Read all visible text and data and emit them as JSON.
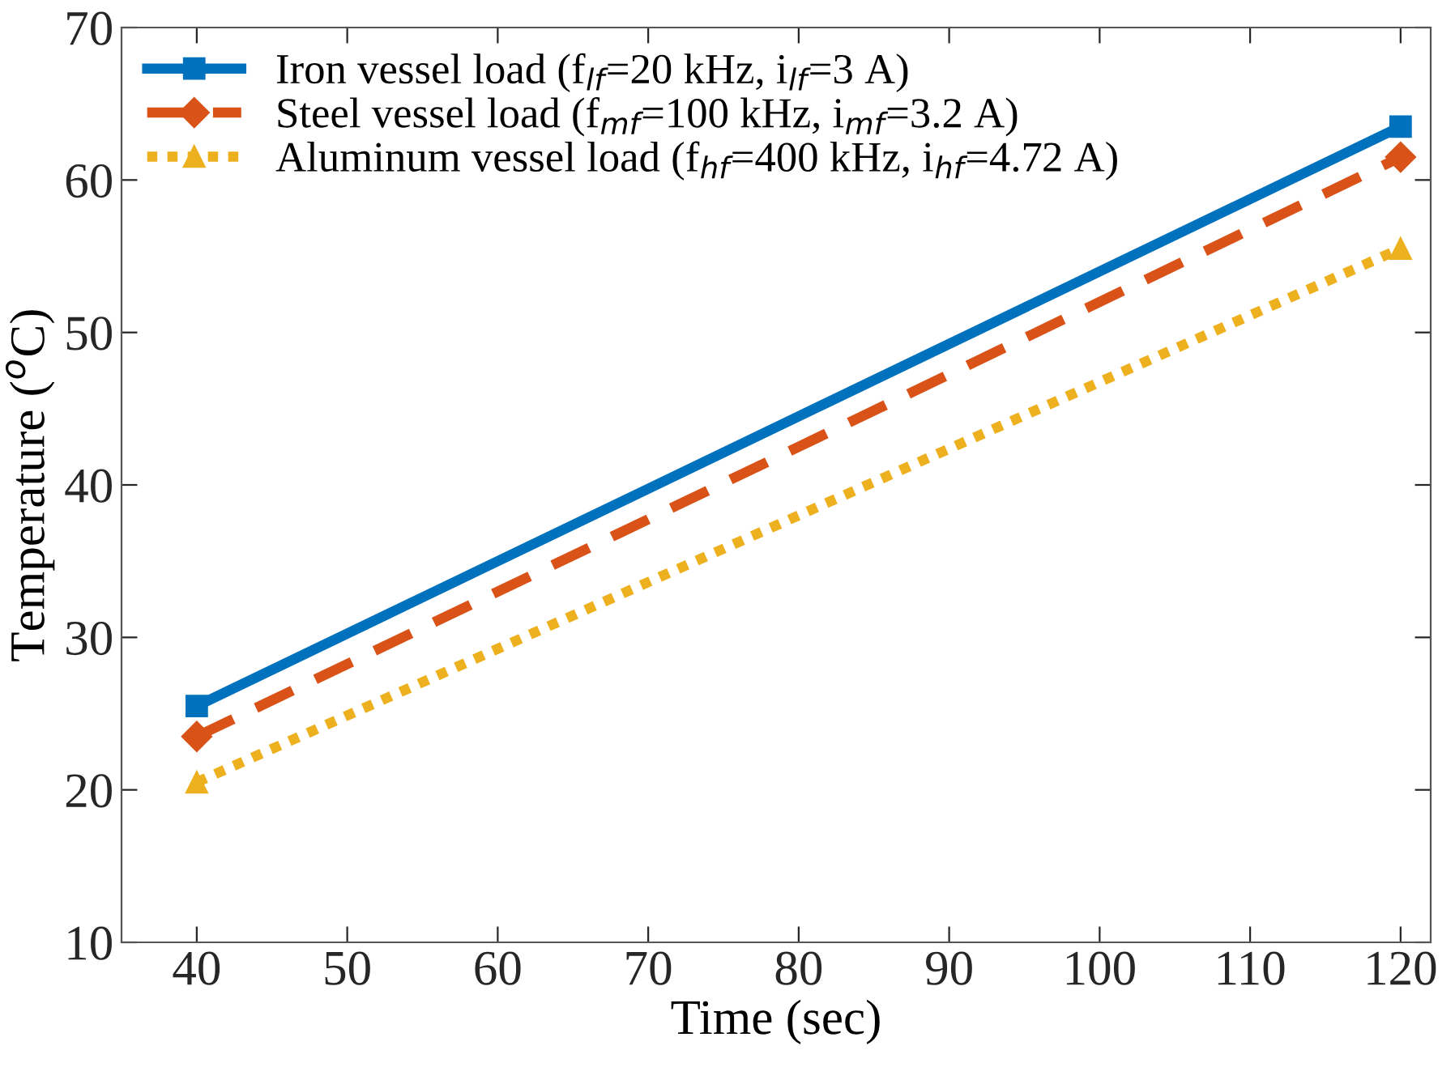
{
  "chart_data": {
    "type": "line",
    "xlabel": "Time (sec)",
    "ylabel": "Temperature ($^{o}$C)",
    "x": [
      40,
      120
    ],
    "series": [
      {
        "name": "Iron vessel load (f$_{lf}$=20 kHz, i$_{lf}$=3 A)",
        "color": "#0072bd",
        "values": [
          25.5,
          63.5
        ],
        "marker": "square",
        "line_style": "solid"
      },
      {
        "name": "Steel vessel load (f$_{mf}$=100 kHz, i$_{mf}$=3.2 A)",
        "color": "#d95319",
        "values": [
          23.5,
          61.5
        ],
        "marker": "diamond",
        "line_style": "dashed"
      },
      {
        "name": "Aluminum vessel load (f$_{hf}$=400 kHz, i$_{hf}$=4.72 A)",
        "color": "#edb120",
        "values": [
          20.5,
          55.5
        ],
        "marker": "triangle",
        "line_style": "dotted"
      }
    ],
    "xlim": [
      35,
      122
    ],
    "ylim": [
      10,
      70
    ],
    "xticks": [
      40,
      50,
      60,
      70,
      80,
      90,
      100,
      110,
      120
    ],
    "yticks": [
      10,
      20,
      30,
      40,
      50,
      60,
      70
    ],
    "grid": false,
    "legend": "top left"
  }
}
